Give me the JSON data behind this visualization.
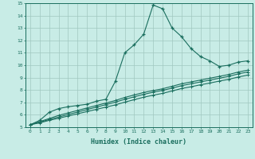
{
  "title": "",
  "xlabel": "Humidex (Indice chaleur)",
  "ylabel": "",
  "xlim": [
    -0.5,
    23.5
  ],
  "ylim": [
    5,
    15
  ],
  "xticks": [
    0,
    1,
    2,
    3,
    4,
    5,
    6,
    7,
    8,
    9,
    10,
    11,
    12,
    13,
    14,
    15,
    16,
    17,
    18,
    19,
    20,
    21,
    22,
    23
  ],
  "yticks": [
    5,
    6,
    7,
    8,
    9,
    10,
    11,
    12,
    13,
    14,
    15
  ],
  "background_color": "#c8ece6",
  "grid_color": "#a0c8c0",
  "line_color": "#1a6e5e",
  "line1_x": [
    0,
    1,
    2,
    3,
    4,
    5,
    6,
    7,
    8,
    9,
    10,
    11,
    12,
    13,
    14,
    15,
    16,
    17,
    18,
    19,
    20,
    21,
    22,
    23
  ],
  "line1_y": [
    5.2,
    5.55,
    6.2,
    6.5,
    6.65,
    6.75,
    6.85,
    7.1,
    7.25,
    8.7,
    11.0,
    11.65,
    12.5,
    14.85,
    14.55,
    13.0,
    12.3,
    11.35,
    10.7,
    10.35,
    9.9,
    10.0,
    10.25,
    10.35
  ],
  "line2_x": [
    0,
    1,
    2,
    3,
    4,
    5,
    6,
    7,
    8,
    9,
    10,
    11,
    12,
    13,
    14,
    15,
    16,
    17,
    18,
    19,
    20,
    21,
    22,
    23
  ],
  "line2_y": [
    5.2,
    5.45,
    5.7,
    5.95,
    6.15,
    6.35,
    6.55,
    6.75,
    6.95,
    7.15,
    7.4,
    7.6,
    7.8,
    7.95,
    8.1,
    8.3,
    8.5,
    8.65,
    8.8,
    8.95,
    9.1,
    9.25,
    9.45,
    9.6
  ],
  "line3_x": [
    0,
    1,
    2,
    3,
    4,
    5,
    6,
    7,
    8,
    9,
    10,
    11,
    12,
    13,
    14,
    15,
    16,
    17,
    18,
    19,
    20,
    21,
    22,
    23
  ],
  "line3_y": [
    5.2,
    5.4,
    5.62,
    5.82,
    6.02,
    6.22,
    6.42,
    6.62,
    6.82,
    7.02,
    7.25,
    7.45,
    7.65,
    7.82,
    7.97,
    8.15,
    8.35,
    8.5,
    8.65,
    8.8,
    8.95,
    9.1,
    9.3,
    9.45
  ],
  "line4_x": [
    0,
    1,
    2,
    3,
    4,
    5,
    6,
    7,
    8,
    9,
    10,
    11,
    12,
    13,
    14,
    15,
    16,
    17,
    18,
    19,
    20,
    21,
    22,
    23
  ],
  "line4_y": [
    5.2,
    5.35,
    5.55,
    5.72,
    5.9,
    6.08,
    6.26,
    6.44,
    6.62,
    6.8,
    7.02,
    7.22,
    7.42,
    7.58,
    7.73,
    7.92,
    8.12,
    8.26,
    8.42,
    8.56,
    8.72,
    8.86,
    9.05,
    9.2
  ]
}
